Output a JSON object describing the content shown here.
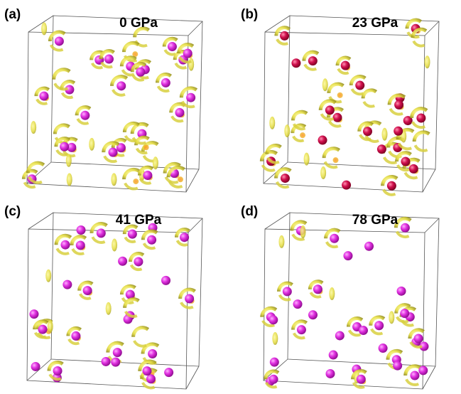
{
  "panels": [
    {
      "label": "(a)",
      "title": "0 GPa"
    },
    {
      "label": "(b)",
      "title": "23 GPa"
    },
    {
      "label": "(c)",
      "title": "41 GPa"
    },
    {
      "label": "(d)",
      "title": "78 GPa"
    }
  ]
}
